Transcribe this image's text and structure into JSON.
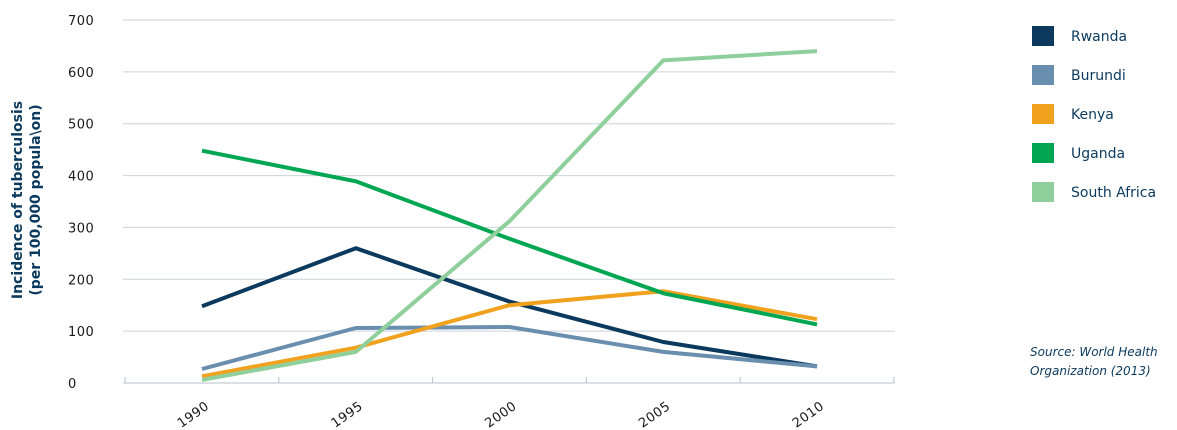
{
  "chart_data": {
    "type": "line",
    "title": "",
    "xlabel": "",
    "ylabel_lines": [
      "Incidence of tuberculosis",
      "(per 100,000 popula\\on)"
    ],
    "x": [
      1990,
      1995,
      2000,
      2005,
      2010
    ],
    "x_tick_labels": [
      "1990",
      "1995",
      "2000",
      "2005",
      "2010"
    ],
    "y_ticks": [
      0,
      100,
      200,
      300,
      400,
      500,
      600,
      700
    ],
    "y_tick_labels": [
      "0",
      "100",
      "200",
      "300",
      "400",
      "500",
      "600",
      "700"
    ],
    "ylim": [
      0,
      700
    ],
    "grid": "horizontal",
    "legend_position": "right",
    "series": [
      {
        "name": "Rwanda",
        "color": "#0b3a5e",
        "values": [
          148,
          260,
          157,
          79,
          32
        ]
      },
      {
        "name": "Burundi",
        "color": "#6a8fae",
        "values": [
          27,
          106,
          108,
          60,
          32
        ]
      },
      {
        "name": "Kenya",
        "color": "#f0a21e",
        "values": [
          13,
          68,
          150,
          177,
          123
        ]
      },
      {
        "name": "Uganda",
        "color": "#00a651",
        "values": [
          448,
          389,
          278,
          173,
          113
        ]
      },
      {
        "name": "South Africa",
        "color": "#8ecf9c",
        "values": [
          6,
          60,
          312,
          622,
          640
        ]
      }
    ],
    "source_lines": [
      "Source: World Health",
      "Organization (2013)"
    ]
  }
}
